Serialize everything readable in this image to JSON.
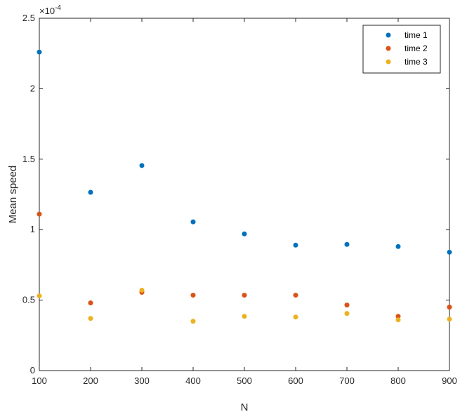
{
  "chart_data": {
    "type": "scatter",
    "xlabel": "N",
    "ylabel": "Mean speed",
    "y_exponent_label": "×10",
    "y_exponent_power": "-4",
    "x": [
      100,
      200,
      300,
      400,
      500,
      600,
      700,
      800,
      900
    ],
    "xlim": [
      100,
      900
    ],
    "ylim": [
      0,
      2.5
    ],
    "x_ticks": [
      "100",
      "200",
      "300",
      "400",
      "500",
      "600",
      "700",
      "800",
      "900"
    ],
    "y_ticks": [
      "0",
      "0.5",
      "1",
      "1.5",
      "2",
      "2.5"
    ],
    "grid": false,
    "legend_position": "top-right",
    "series": [
      {
        "name": "time 1",
        "color": "#0072bd",
        "values": [
          2.26,
          1.265,
          1.455,
          1.055,
          0.97,
          0.89,
          0.895,
          0.88,
          0.84
        ]
      },
      {
        "name": "time 2",
        "color": "#d95319",
        "values": [
          1.11,
          0.48,
          0.555,
          0.535,
          0.535,
          0.535,
          0.465,
          0.385,
          0.45
        ]
      },
      {
        "name": "time 3",
        "color": "#edb120",
        "values": [
          0.53,
          0.37,
          0.57,
          0.35,
          0.385,
          0.38,
          0.405,
          0.36,
          0.365
        ]
      }
    ]
  }
}
